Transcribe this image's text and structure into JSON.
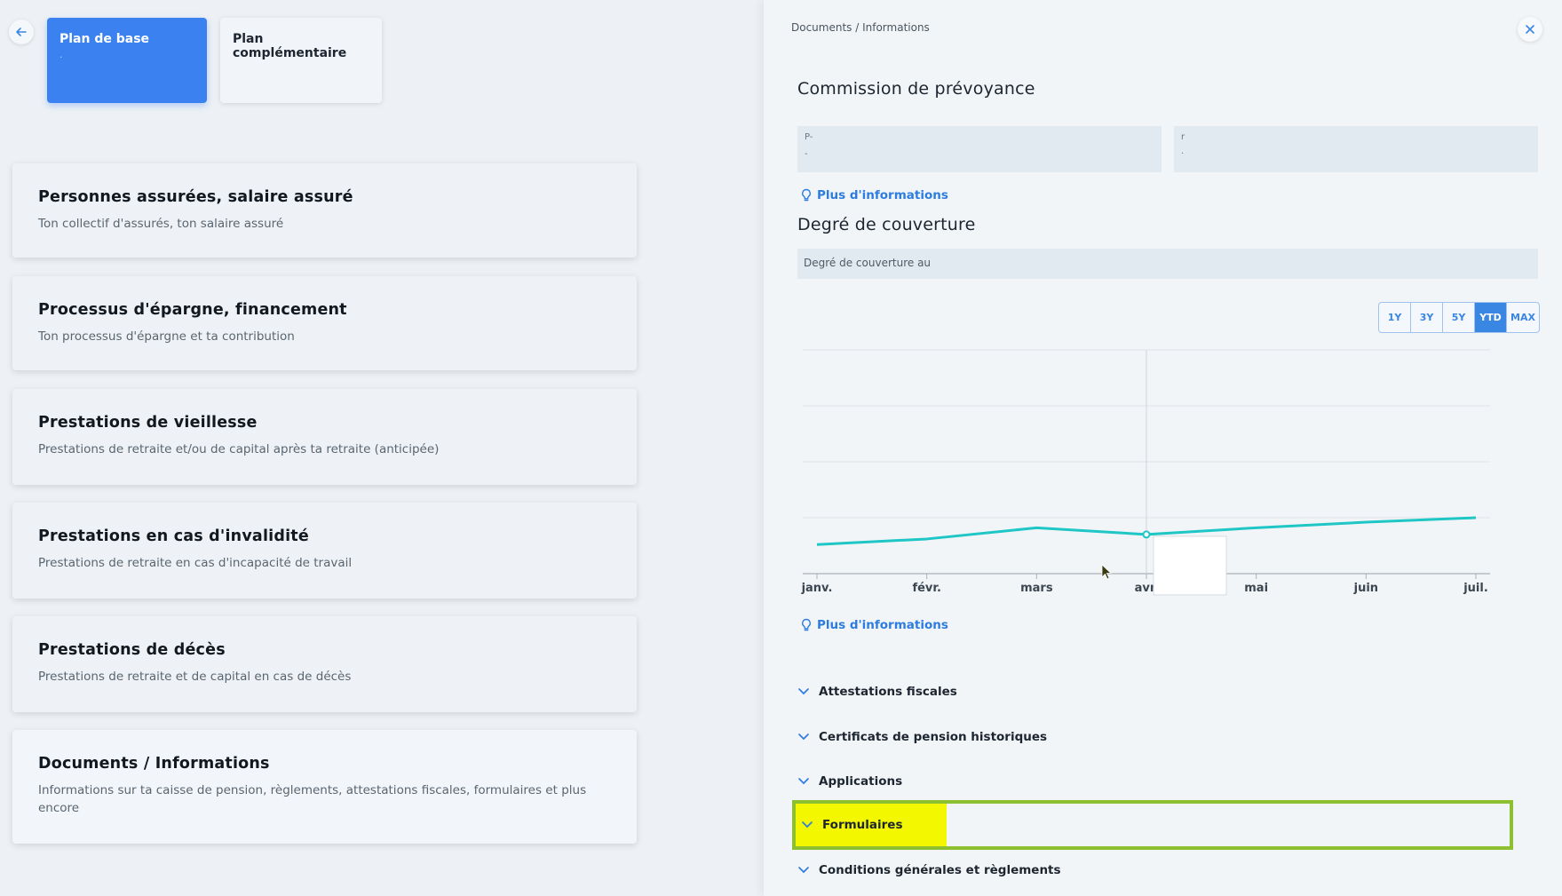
{
  "plans": {
    "base": {
      "label": "Plan de base",
      "sub": "·"
    },
    "supplementary": {
      "label": "Plan complémentaire"
    }
  },
  "cards": [
    {
      "title": "Personnes assurées, salaire assuré",
      "desc": "Ton collectif d'assurés, ton salaire assuré"
    },
    {
      "title": "Processus d'épargne, financement",
      "desc": "Ton processus d'épargne et ta contribution"
    },
    {
      "title": "Prestations de vieillesse",
      "desc": "Prestations de retraite et/ou de capital après ta retraite (anticipée)"
    },
    {
      "title": "Prestations en cas d'invalidité",
      "desc": "Prestations de retraite en cas d'incapacité de travail"
    },
    {
      "title": "Prestations de décès",
      "desc": "Prestations de retraite et de capital en cas de décès"
    },
    {
      "title": "Documents / Informations",
      "desc": "Informations sur ta caisse de pension, règlements, attestations fiscales, formulaires et plus encore"
    }
  ],
  "panel": {
    "breadcrumb": "Documents / Informations",
    "commission_title": "Commission de prévoyance",
    "box1": {
      "line1": "P-",
      "line2": "-"
    },
    "box2": {
      "line1": "r",
      "line2": "·"
    },
    "more_info_label": "Plus d'informations",
    "coverage_title": "Degré de couverture",
    "coverage_box_label": "Degré de couverture au",
    "ranges": [
      "1Y",
      "3Y",
      "5Y",
      "YTD",
      "MAX"
    ],
    "selected_range": "YTD",
    "accordion": [
      "Attestations fiscales",
      "Certificats de pension historiques",
      "Applications",
      "Formulaires",
      "Conditions générales et règlements"
    ],
    "highlighted_item": "Formulaires"
  },
  "colors": {
    "accent": "#3b82f0",
    "line": "#1fc6c6",
    "highlight_fill": "#f3f700",
    "highlight_border": "#8dc030"
  },
  "chart_data": {
    "type": "line",
    "categories": [
      "janv.",
      "févr.",
      "mars",
      "avr.",
      "mai",
      "juin",
      "juil."
    ],
    "values": [
      1.3,
      1.55,
      2.05,
      1.75,
      2.05,
      2.3,
      2.5
    ],
    "ylim": [
      0,
      10
    ],
    "grid": true,
    "hover_category": "avr."
  }
}
